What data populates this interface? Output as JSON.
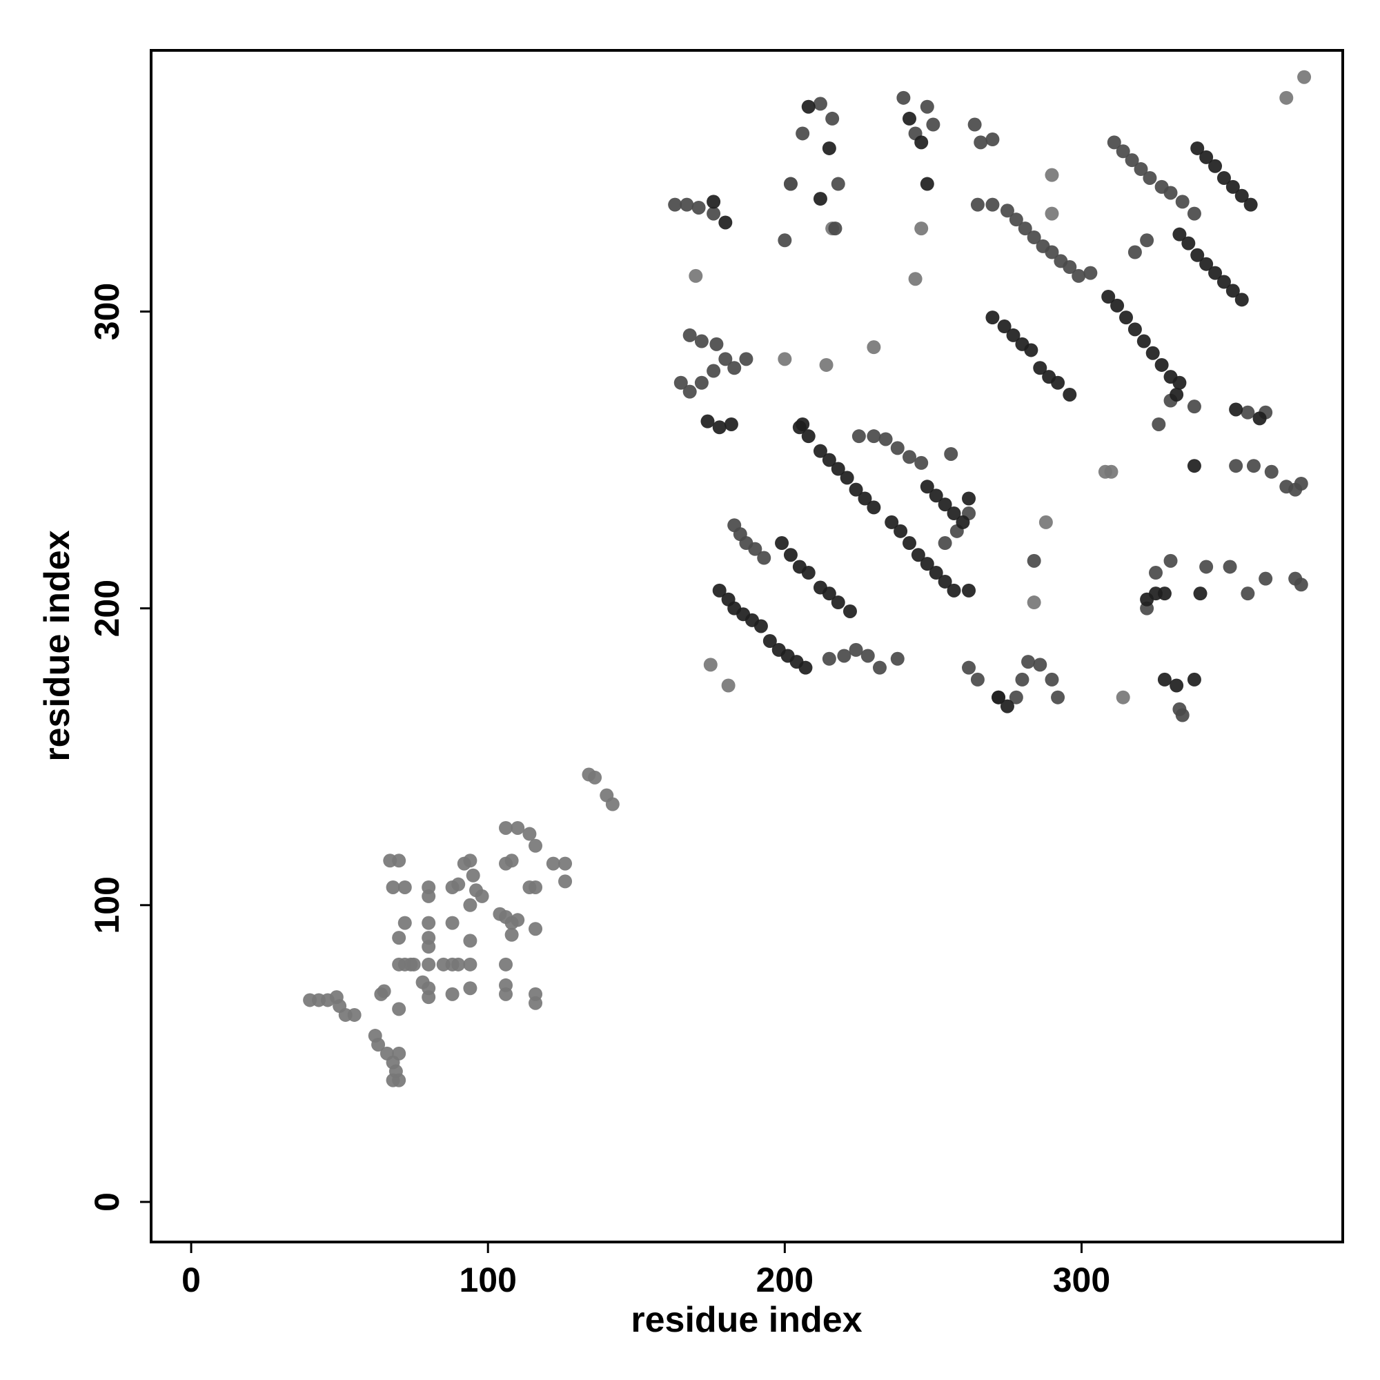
{
  "chart_data": {
    "type": "scatter",
    "x_label": "residue index",
    "y_label": "residue index",
    "xlim": [
      -13.5,
      388
    ],
    "ylim": [
      -13.5,
      388
    ],
    "xticks": [
      0,
      100,
      200,
      300
    ],
    "yticks": [
      0,
      100,
      200,
      300
    ],
    "series": [
      {
        "color": "#777777",
        "x": [
          40,
          43,
          46,
          49,
          50,
          52,
          55,
          62,
          63,
          64,
          65,
          66,
          68,
          69,
          68,
          70,
          70,
          67,
          70,
          68,
          72,
          70,
          70,
          70,
          72,
          74,
          72,
          75,
          78,
          80,
          80,
          80,
          80,
          80,
          80,
          80,
          80,
          85,
          88,
          88,
          88,
          88,
          90,
          90,
          92,
          94,
          94,
          94,
          94,
          94,
          95,
          96,
          98,
          104,
          106,
          108,
          108,
          106,
          106,
          106,
          106,
          108,
          106,
          110,
          110,
          114,
          116,
          114,
          116,
          116,
          116,
          116,
          122,
          126,
          126,
          134,
          136,
          140,
          142,
          170,
          175,
          181,
          200,
          214,
          230,
          284,
          288,
          290,
          290,
          308,
          310,
          314,
          375,
          369,
          246,
          244,
          216,
          202
        ],
        "y": [
          68,
          68,
          68,
          69,
          66,
          63,
          63,
          56,
          53,
          70,
          71,
          50,
          47,
          44,
          41,
          41,
          50,
          115,
          115,
          106,
          106,
          89,
          65,
          80,
          80,
          80,
          94,
          80,
          74,
          72,
          69,
          80,
          86,
          89,
          94,
          103,
          106,
          80,
          80,
          106,
          94,
          70,
          80,
          107,
          114,
          115,
          100,
          88,
          80,
          72,
          110,
          105,
          103,
          97,
          96,
          90,
          94,
          80,
          70,
          73,
          114,
          115,
          126,
          126,
          95,
          106,
          106,
          124,
          120,
          92,
          70,
          67,
          114,
          114,
          108,
          144,
          143,
          137,
          134,
          312,
          181,
          174,
          284,
          282,
          288,
          202,
          229,
          346,
          333,
          246,
          246,
          170,
          379,
          372,
          328,
          311,
          328,
          343
        ]
      },
      {
        "color": "#4a4a4a",
        "x": [
          225,
          230,
          234,
          238,
          242,
          246,
          183,
          185,
          187,
          190,
          193,
          215,
          220,
          224,
          228,
          232,
          238,
          265,
          270,
          275,
          278,
          281,
          284,
          287,
          290,
          293,
          296,
          299,
          303,
          311,
          314,
          317,
          320,
          323,
          327,
          330,
          334,
          338,
          163,
          167,
          171,
          176,
          168,
          172,
          177,
          180,
          183,
          187,
          165,
          168,
          172,
          176,
          206,
          212,
          216,
          218,
          217,
          202,
          200,
          240,
          244,
          248,
          250,
          264,
          266,
          270,
          254,
          258,
          262,
          256,
          262,
          265,
          272,
          278,
          280,
          282,
          286,
          290,
          292,
          284,
          318,
          322,
          325,
          330,
          342,
          350,
          356,
          362,
          372,
          374,
          352,
          358,
          364,
          369,
          372,
          374,
          356,
          362,
          322,
          326,
          330,
          338,
          333,
          334
        ],
        "y": [
          258,
          258,
          257,
          254,
          251,
          249,
          228,
          225,
          222,
          220,
          217,
          183,
          184,
          186,
          184,
          180,
          183,
          336,
          336,
          334,
          331,
          328,
          325,
          322,
          320,
          317,
          315,
          312,
          313,
          357,
          354,
          351,
          348,
          345,
          342,
          340,
          337,
          333,
          336,
          336,
          335,
          333,
          292,
          290,
          289,
          284,
          281,
          284,
          276,
          273,
          276,
          280,
          360,
          370,
          365,
          343,
          328,
          343,
          324,
          372,
          360,
          369,
          363,
          363,
          357,
          358,
          222,
          226,
          232,
          252,
          180,
          176,
          170,
          170,
          176,
          182,
          181,
          176,
          170,
          216,
          320,
          324,
          212,
          216,
          214,
          214,
          205,
          210,
          210,
          208,
          248,
          248,
          246,
          241,
          240,
          242,
          266,
          266,
          200,
          262,
          270,
          268,
          166,
          164
        ]
      },
      {
        "color": "#1e1e1e",
        "x": [
          205,
          208,
          212,
          215,
          218,
          221,
          224,
          227,
          230,
          248,
          251,
          254,
          257,
          260,
          236,
          239,
          242,
          245,
          248,
          251,
          254,
          257,
          262,
          199,
          202,
          205,
          208,
          212,
          215,
          218,
          222,
          178,
          181,
          183,
          186,
          189,
          192,
          195,
          198,
          201,
          204,
          207,
          270,
          274,
          277,
          280,
          283,
          286,
          289,
          292,
          296,
          309,
          312,
          315,
          318,
          321,
          324,
          327,
          330,
          333,
          339,
          342,
          345,
          348,
          351,
          354,
          357,
          333,
          336,
          339,
          342,
          345,
          348,
          351,
          354,
          176,
          180,
          174,
          178,
          182,
          206,
          208,
          215,
          212,
          242,
          246,
          248,
          262,
          272,
          275,
          322,
          325,
          328,
          340,
          352,
          360,
          338,
          332,
          328,
          332,
          338
        ],
        "y": [
          261,
          258,
          253,
          250,
          247,
          244,
          240,
          237,
          234,
          241,
          238,
          235,
          232,
          229,
          229,
          226,
          222,
          218,
          215,
          212,
          209,
          206,
          206,
          222,
          218,
          214,
          212,
          207,
          205,
          202,
          199,
          206,
          203,
          200,
          198,
          196,
          194,
          189,
          186,
          184,
          182,
          180,
          298,
          295,
          292,
          289,
          287,
          281,
          278,
          276,
          272,
          305,
          302,
          298,
          294,
          290,
          286,
          282,
          278,
          276,
          355,
          352,
          349,
          345,
          342,
          339,
          336,
          326,
          323,
          319,
          316,
          313,
          310,
          307,
          304,
          337,
          330,
          263,
          261,
          262,
          262,
          369,
          355,
          338,
          365,
          357,
          343,
          237,
          170,
          167,
          203,
          205,
          205,
          205,
          267,
          264,
          248,
          272,
          176,
          174,
          176
        ]
      }
    ]
  }
}
